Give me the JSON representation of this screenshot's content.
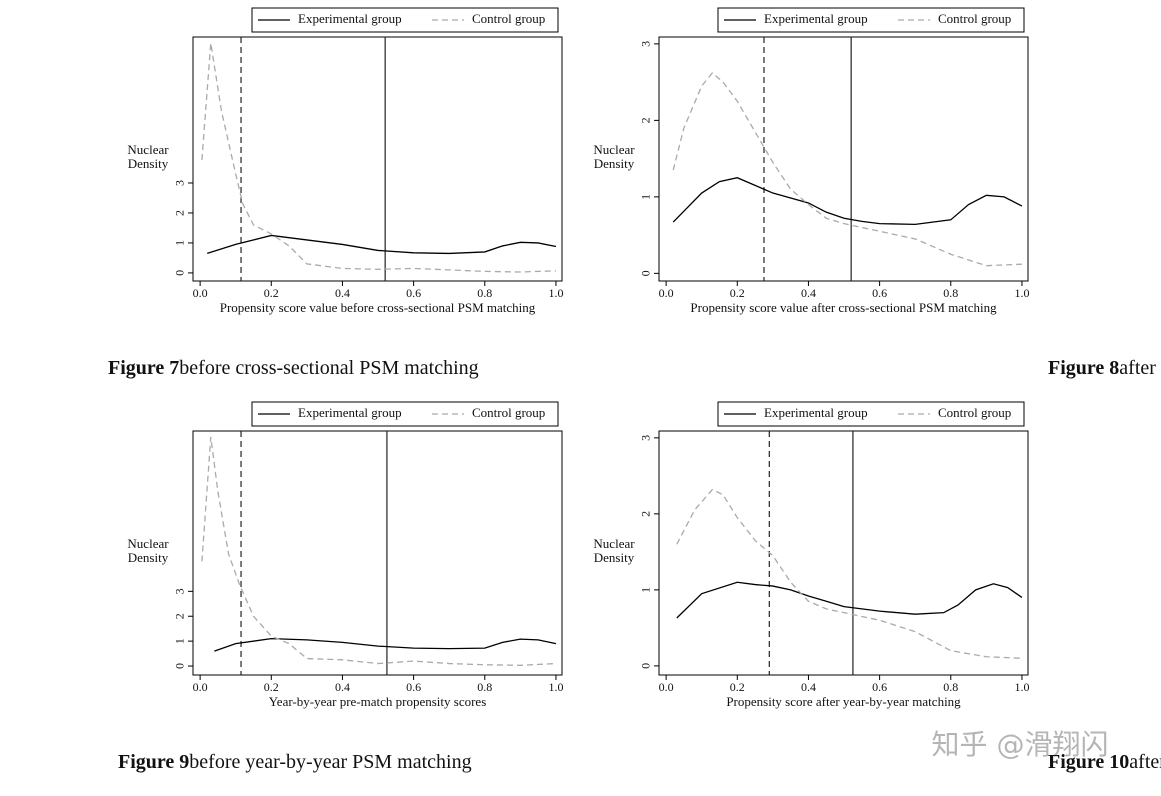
{
  "chart_data": [
    {
      "type": "line",
      "x_label": "Propensity score value before cross-sectional PSM matching",
      "y_label": "Nuclear Density",
      "caption_label": "Figure 7",
      "caption_text": "before cross-sectional PSM matching",
      "xlim": [
        -0.02,
        1.017
      ],
      "ylim": [
        -0.27,
        7.87
      ],
      "xticks": [
        {
          "value": 0,
          "label": "0.0"
        },
        0.2,
        0.4,
        0.6,
        0.8,
        {
          "value": 1,
          "label": "1.0"
        }
      ],
      "yticks": [
        0,
        1,
        2,
        3
      ],
      "vlines": [
        {
          "x": 0.115,
          "style": "dashed"
        },
        {
          "x": 0.52,
          "style": "solid"
        }
      ],
      "series": [
        {
          "name": "Experimental group",
          "color": "#000000",
          "style": "solid",
          "x": [
            0.02,
            0.1,
            0.2,
            0.3,
            0.4,
            0.5,
            0.6,
            0.7,
            0.8,
            0.85,
            0.9,
            0.95,
            1.0
          ],
          "values": [
            0.65,
            0.95,
            1.25,
            1.1,
            0.95,
            0.75,
            0.67,
            0.65,
            0.7,
            0.9,
            1.02,
            1.0,
            0.88
          ]
        },
        {
          "name": "Control group",
          "color": "#aaaaaa",
          "style": "dashed",
          "x": [
            0.005,
            0.03,
            0.06,
            0.1,
            0.12,
            0.15,
            0.2,
            0.25,
            0.3,
            0.4,
            0.5,
            0.6,
            0.7,
            0.8,
            0.9,
            1.0
          ],
          "values": [
            3.77,
            7.67,
            5.4,
            3.3,
            2.3,
            1.6,
            1.3,
            0.9,
            0.3,
            0.15,
            0.12,
            0.15,
            0.1,
            0.05,
            0.03,
            0.07
          ]
        }
      ]
    },
    {
      "type": "line",
      "x_label": "Propensity score value after cross-sectional PSM matching",
      "y_label": "Nuclear Density",
      "caption_label": "Figure 8",
      "caption_text": "after cross-sectional PSM matching",
      "xlim": [
        -0.02,
        1.017
      ],
      "ylim": [
        -0.1,
        3.09
      ],
      "xticks": [
        {
          "value": 0,
          "label": "0.0"
        },
        0.2,
        0.4,
        0.6,
        0.8,
        {
          "value": 1,
          "label": "1.0"
        }
      ],
      "yticks": [
        0,
        1,
        2,
        3
      ],
      "vlines": [
        {
          "x": 0.275,
          "style": "dashed"
        },
        {
          "x": 0.52,
          "style": "solid"
        }
      ],
      "series": [
        {
          "name": "Experimental group",
          "color": "#000000",
          "style": "solid",
          "x": [
            0.02,
            0.1,
            0.15,
            0.2,
            0.25,
            0.3,
            0.4,
            0.45,
            0.5,
            0.55,
            0.6,
            0.7,
            0.8,
            0.85,
            0.9,
            0.95,
            1.0
          ],
          "values": [
            0.67,
            1.05,
            1.2,
            1.25,
            1.15,
            1.05,
            0.92,
            0.8,
            0.72,
            0.68,
            0.65,
            0.64,
            0.7,
            0.9,
            1.02,
            1.0,
            0.88
          ]
        },
        {
          "name": "Control group",
          "color": "#aaaaaa",
          "style": "dashed",
          "x": [
            0.02,
            0.05,
            0.1,
            0.13,
            0.16,
            0.2,
            0.25,
            0.3,
            0.35,
            0.4,
            0.45,
            0.5,
            0.6,
            0.7,
            0.8,
            0.9,
            1.0
          ],
          "values": [
            1.35,
            1.9,
            2.45,
            2.62,
            2.5,
            2.25,
            1.85,
            1.45,
            1.1,
            0.9,
            0.72,
            0.65,
            0.55,
            0.45,
            0.25,
            0.1,
            0.12
          ]
        }
      ]
    },
    {
      "type": "line",
      "x_label": "Year-by-year pre-match propensity scores",
      "y_label": "Nuclear Density",
      "caption_label": "Figure 9",
      "caption_text": "before year-by-year PSM matching",
      "xlim": [
        -0.02,
        1.017
      ],
      "ylim": [
        -0.36,
        9.44
      ],
      "xticks": [
        {
          "value": 0,
          "label": "0.0"
        },
        0.2,
        0.4,
        0.6,
        0.8,
        {
          "value": 1,
          "label": "1.0"
        }
      ],
      "yticks": [
        0,
        1,
        2,
        3
      ],
      "vlines": [
        {
          "x": 0.115,
          "style": "dashed"
        },
        {
          "x": 0.525,
          "style": "solid"
        }
      ],
      "series": [
        {
          "name": "Experimental group",
          "color": "#000000",
          "style": "solid",
          "x": [
            0.04,
            0.1,
            0.2,
            0.3,
            0.4,
            0.5,
            0.6,
            0.7,
            0.8,
            0.85,
            0.9,
            0.95,
            1.0
          ],
          "values": [
            0.6,
            0.9,
            1.1,
            1.05,
            0.95,
            0.8,
            0.72,
            0.7,
            0.72,
            0.95,
            1.08,
            1.05,
            0.9
          ]
        },
        {
          "name": "Control group",
          "color": "#aaaaaa",
          "style": "dashed",
          "x": [
            0.005,
            0.03,
            0.05,
            0.08,
            0.11,
            0.15,
            0.2,
            0.25,
            0.3,
            0.4,
            0.5,
            0.6,
            0.7,
            0.8,
            0.9,
            1.0
          ],
          "values": [
            4.2,
            9.2,
            7,
            4.5,
            3.3,
            2,
            1.2,
            0.9,
            0.3,
            0.25,
            0.1,
            0.2,
            0.1,
            0.05,
            0.03,
            0.1
          ]
        }
      ]
    },
    {
      "type": "line",
      "x_label": "Propensity score after year-by-year matching",
      "y_label": "Nuclear Density",
      "caption_label": "Figure 10",
      "caption_text": "after year-by-year PSM matching",
      "xlim": [
        -0.02,
        1.017
      ],
      "ylim": [
        -0.12,
        3.09
      ],
      "xticks": [
        {
          "value": 0,
          "label": "0.0"
        },
        0.2,
        0.4,
        0.6,
        0.8,
        {
          "value": 1,
          "label": "1.0"
        }
      ],
      "yticks": [
        0,
        1,
        2,
        3
      ],
      "vlines": [
        {
          "x": 0.29,
          "style": "dashed"
        },
        {
          "x": 0.525,
          "style": "solid"
        }
      ],
      "series": [
        {
          "name": "Experimental group",
          "color": "#000000",
          "style": "solid",
          "x": [
            0.03,
            0.1,
            0.2,
            0.25,
            0.3,
            0.35,
            0.4,
            0.45,
            0.5,
            0.6,
            0.7,
            0.78,
            0.82,
            0.87,
            0.92,
            0.96,
            1.0
          ],
          "values": [
            0.63,
            0.95,
            1.1,
            1.07,
            1.05,
            1.0,
            0.92,
            0.85,
            0.78,
            0.72,
            0.68,
            0.7,
            0.8,
            1.0,
            1.08,
            1.03,
            0.9
          ]
        },
        {
          "name": "Control group",
          "color": "#aaaaaa",
          "style": "dashed",
          "x": [
            0.03,
            0.08,
            0.13,
            0.16,
            0.2,
            0.25,
            0.3,
            0.35,
            0.4,
            0.45,
            0.5,
            0.6,
            0.7,
            0.8,
            0.9,
            1.0
          ],
          "values": [
            1.6,
            2.05,
            2.32,
            2.25,
            1.95,
            1.65,
            1.45,
            1.1,
            0.85,
            0.75,
            0.7,
            0.6,
            0.45,
            0.2,
            0.12,
            0.1
          ]
        }
      ]
    }
  ],
  "watermark": "知乎 @滑翔闪"
}
